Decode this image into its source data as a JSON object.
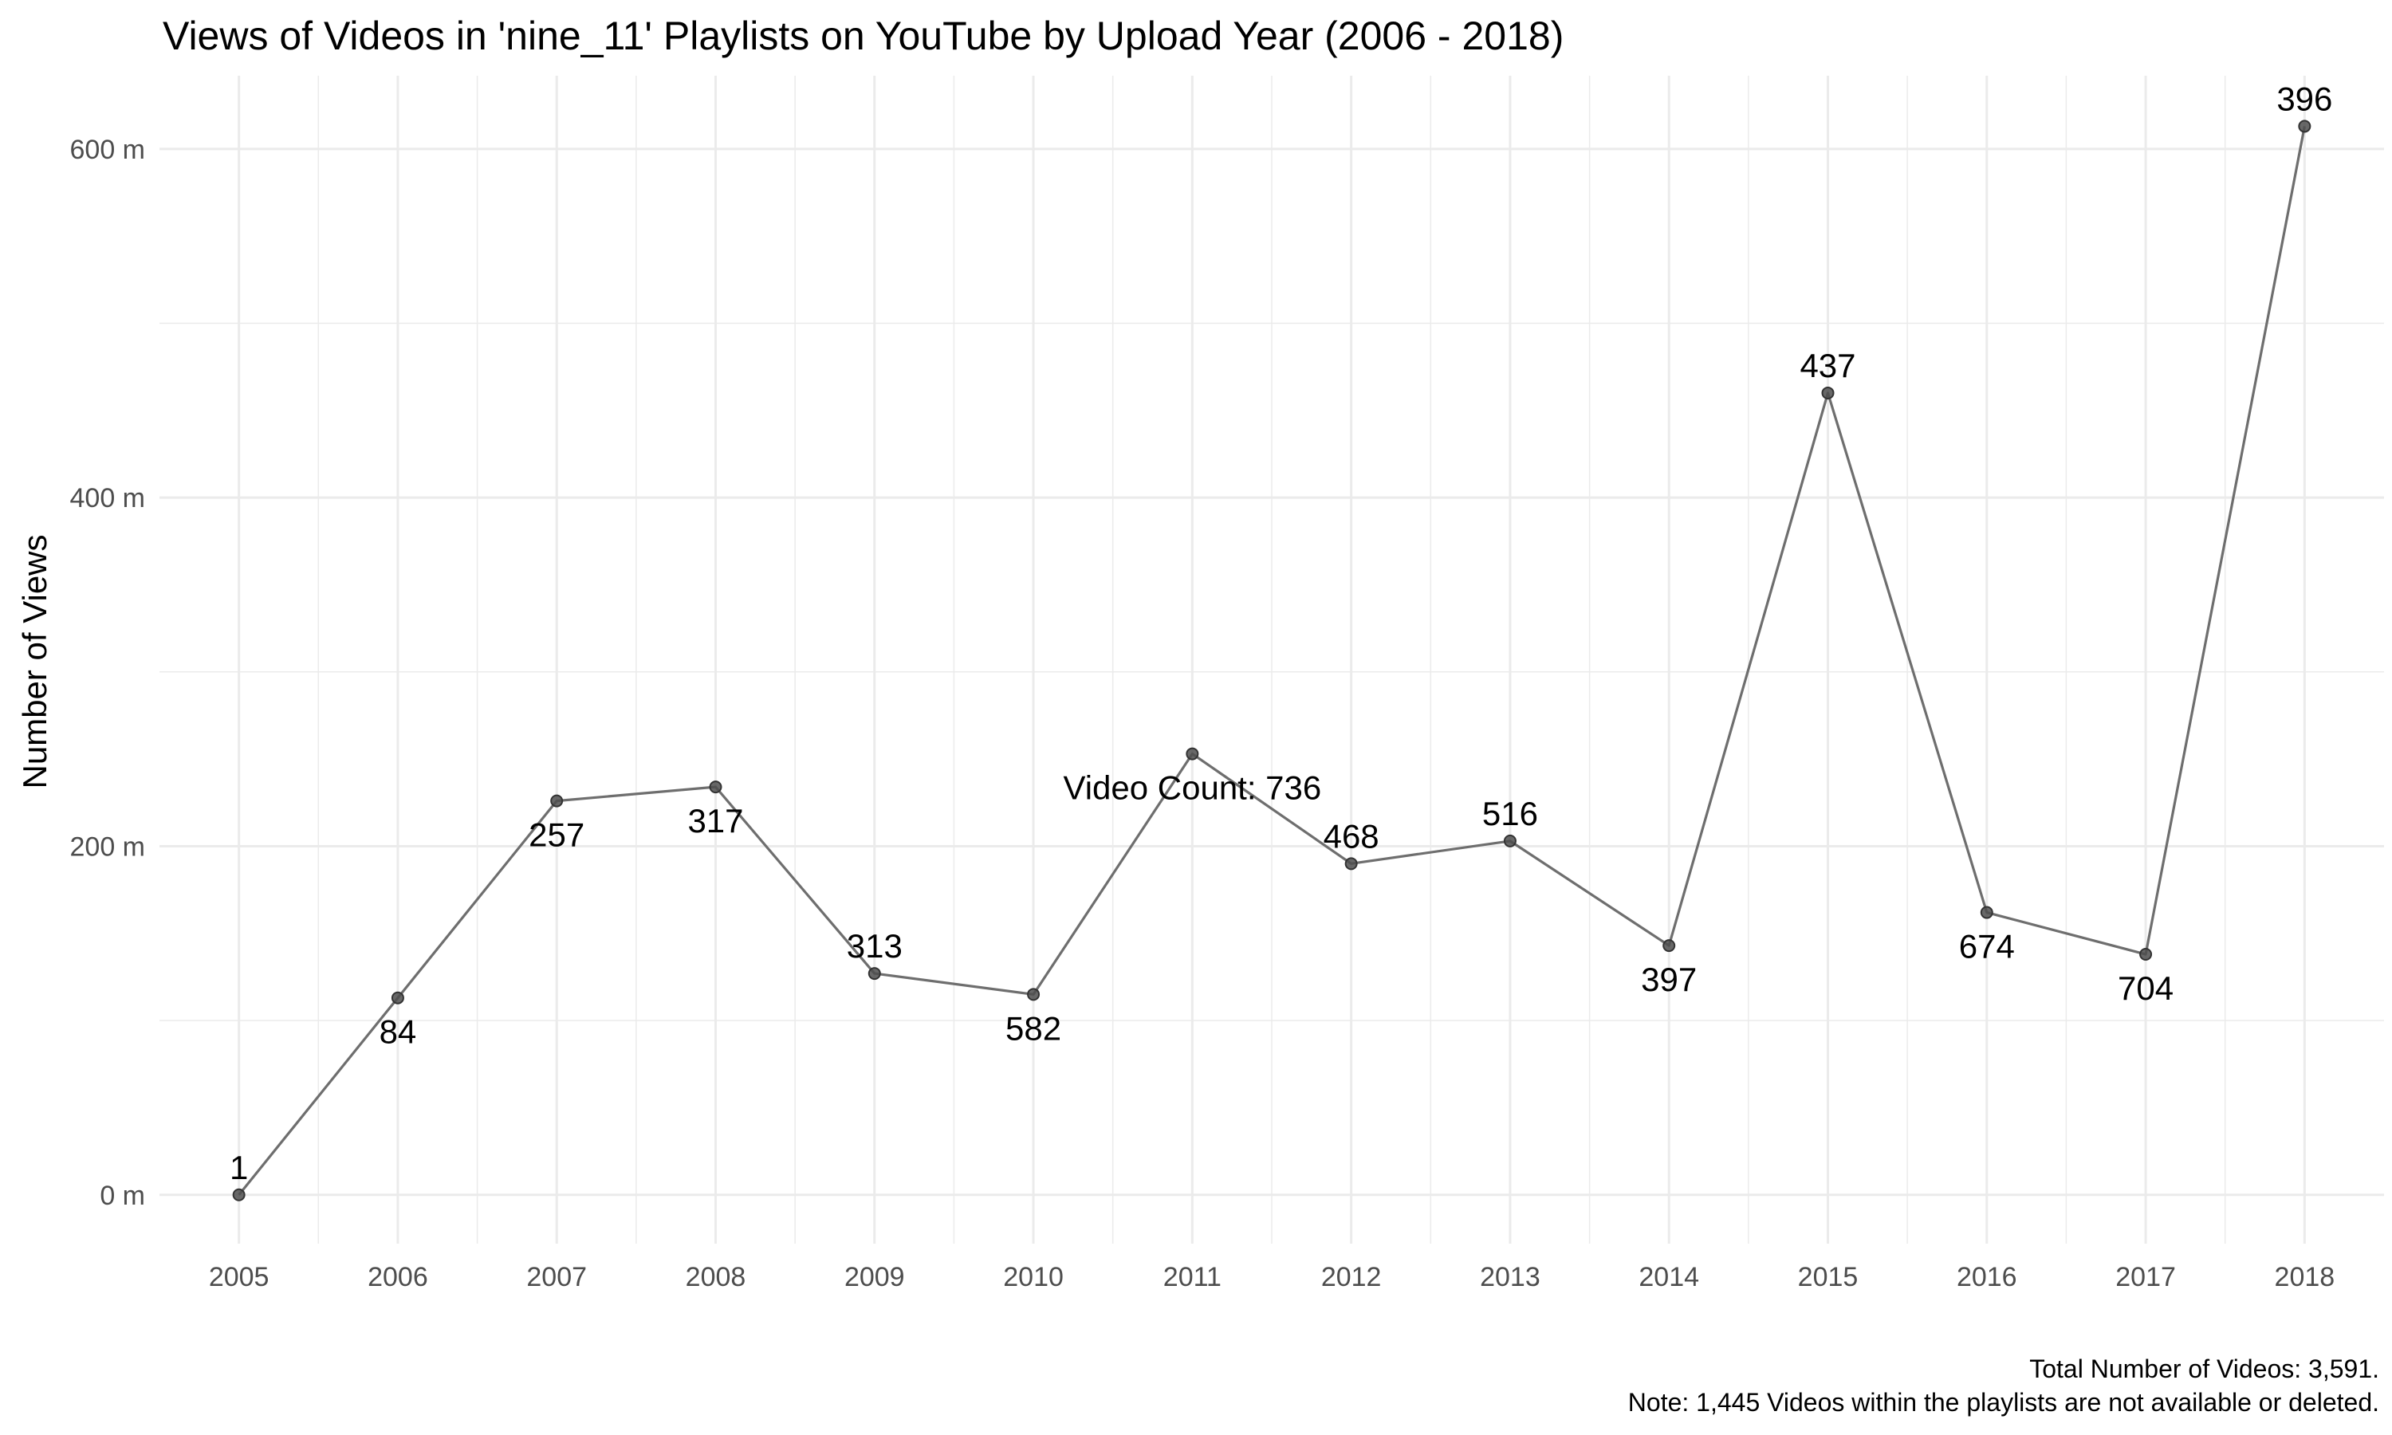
{
  "chart_data": {
    "type": "line",
    "title": "Views of Videos in 'nine_11' Playlists on  YouTube by Upload Year (2006 - 2018)",
    "xlabel": "",
    "ylabel": "Number of Views",
    "x": [
      2005,
      2006,
      2007,
      2008,
      2009,
      2010,
      2011,
      2012,
      2013,
      2014,
      2015,
      2016,
      2017,
      2018
    ],
    "series": [
      {
        "values": [
          0,
          113,
          226,
          234,
          127,
          115,
          253,
          190,
          203,
          143,
          460,
          162,
          138,
          613
        ],
        "point_labels": [
          "1",
          "84",
          "257",
          "317",
          "313",
          "582",
          "Video Count: 736",
          "468",
          "516",
          "397",
          "437",
          "674",
          "704",
          "396"
        ],
        "label_position": [
          "above",
          "below",
          "below",
          "below",
          "above",
          "below",
          "below",
          "above",
          "above",
          "below",
          "above",
          "below",
          "below",
          "above"
        ]
      }
    ],
    "ylim": [
      -28,
      642
    ],
    "y_ticks": [
      0,
      200,
      400,
      600
    ],
    "y_tick_labels": [
      "0 m",
      "200 m",
      "400 m",
      "600 m"
    ],
    "xlim": [
      2004.5,
      2018.5
    ],
    "grid": true,
    "line_color": "#6e6e6e",
    "point_color": "#4d4d4d",
    "grid_color": "#ebebeb",
    "caption": [
      "Total Number of Videos: 3,591.",
      "Note: 1,445 Videos within the playlists are not available or deleted."
    ]
  }
}
